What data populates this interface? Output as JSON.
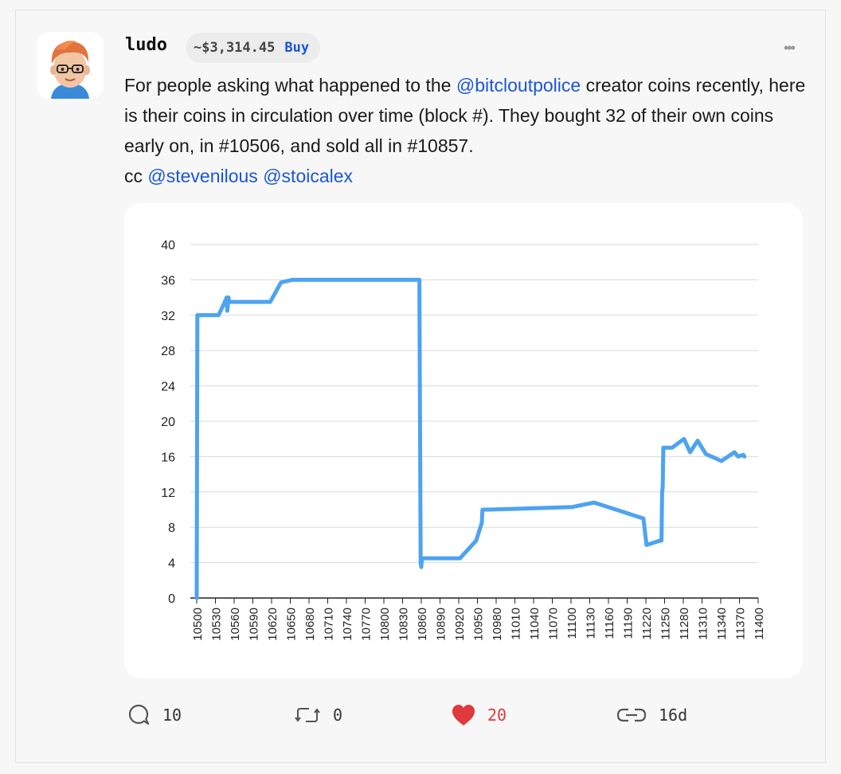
{
  "post": {
    "username": "ludo",
    "price": "~$3,314.45",
    "buy_label": "Buy",
    "more_label": "•••",
    "text_1": "For people asking what happened to the ",
    "mention_1": "@bitcloutpolice",
    "text_2": " creator coins recently, here is their coins in circulation over time (block #). They bought 32 of their own coins early on, in #10506, and sold all in #10857.",
    "text_3": "cc ",
    "mention_2": "@stevenilous",
    "text_4": " ",
    "mention_3": "@stoicalex"
  },
  "actions": {
    "comments": "10",
    "reclouts": "0",
    "likes": "20",
    "age": "16d"
  },
  "colors": {
    "accent": "#1a56db",
    "line": "#4da3f0",
    "like": "#e0393e"
  },
  "chart_data": {
    "type": "line",
    "xlabel": "",
    "ylabel": "",
    "xlim": [
      10500,
      11400
    ],
    "ylim": [
      0,
      40
    ],
    "x_ticks": [
      10500,
      10530,
      10560,
      10590,
      10620,
      10650,
      10680,
      10710,
      10740,
      10770,
      10800,
      10830,
      10860,
      10890,
      10920,
      10950,
      10980,
      11010,
      11040,
      11070,
      11100,
      11130,
      11160,
      11190,
      11220,
      11250,
      11280,
      11310,
      11340,
      11370,
      11400
    ],
    "y_ticks": [
      0,
      4,
      8,
      12,
      16,
      20,
      24,
      28,
      32,
      36,
      40
    ],
    "grid": "horizontal",
    "series": [
      {
        "x": [
          10500,
          10501,
          10506,
          10535,
          10545,
          10548,
          10549,
          10551,
          10552,
          10600,
          10618,
          10635,
          10653,
          10691,
          10857,
          10858,
          10859,
          10860,
          10861,
          10864,
          10922,
          10948,
          10957,
          10958,
          10968,
          11102,
          11137,
          11216,
          11221,
          11243,
          11245,
          11246,
          11247,
          11248,
          11249,
          11262,
          11281,
          11291,
          11303,
          11316,
          11341,
          11362,
          11368,
          11376,
          11378
        ],
        "y": [
          0,
          32,
          32,
          32,
          33.5,
          34,
          32.5,
          34,
          33.5,
          33.5,
          33.5,
          35.7,
          36,
          36,
          36,
          20,
          4,
          3.5,
          4.5,
          4.5,
          4.5,
          6.5,
          8.5,
          10,
          10,
          10.3,
          10.8,
          9,
          6,
          6.5,
          6.5,
          12,
          12.5,
          17,
          17,
          17,
          18,
          16.5,
          17.8,
          16.3,
          15.5,
          16.5,
          16,
          16.2,
          16
        ]
      }
    ]
  }
}
